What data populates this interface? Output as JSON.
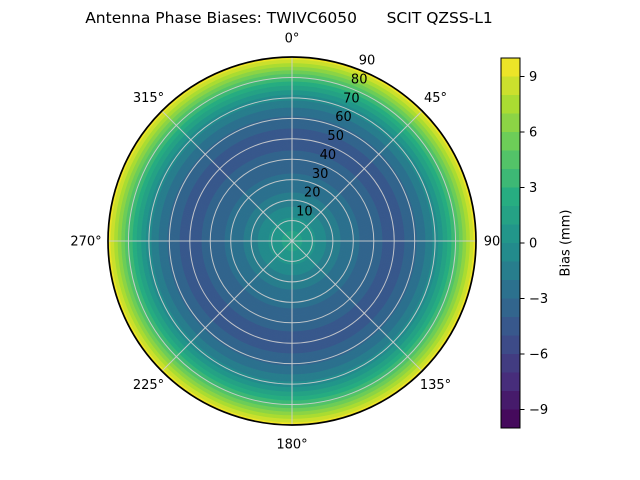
{
  "title": "Antenna Phase Biases: TWIVC6050      SCIT QZSS-L1",
  "chart_data": {
    "type": "heatmap",
    "projection": "polar",
    "title": "Antenna Phase Biases: TWIVC6050      SCIT QZSS-L1",
    "description": "Radially symmetric antenna phase bias map over zenith angle 0-90",
    "r_max": 90,
    "angle_ticks": [
      {
        "deg": 0,
        "label": "0°"
      },
      {
        "deg": 45,
        "label": "45°"
      },
      {
        "deg": 90,
        "label": "90"
      },
      {
        "deg": 135,
        "label": "135°"
      },
      {
        "deg": 180,
        "label": "180°"
      },
      {
        "deg": 225,
        "label": "225°"
      },
      {
        "deg": 270,
        "label": "270°"
      },
      {
        "deg": 315,
        "label": "315°"
      }
    ],
    "radial_ticks": [
      {
        "value": 10,
        "label": "10"
      },
      {
        "value": 20,
        "label": "20"
      },
      {
        "value": 30,
        "label": "30"
      },
      {
        "value": 40,
        "label": "40"
      },
      {
        "value": 50,
        "label": "50"
      },
      {
        "value": 60,
        "label": "60"
      },
      {
        "value": 70,
        "label": "70"
      },
      {
        "value": 80,
        "label": "80"
      },
      {
        "value": 90,
        "label": "90"
      }
    ],
    "radial_label_angle_deg": 22.5,
    "grid_on": true,
    "radial_profile": {
      "r": [
        0,
        5,
        10,
        14,
        20,
        30,
        40,
        47,
        55,
        60,
        65,
        70,
        75,
        80,
        85,
        90
      ],
      "bias_mm": [
        1.4,
        1.0,
        0.3,
        -0.5,
        -1.6,
        -2.7,
        -3.7,
        -4.2,
        -4.0,
        -3.2,
        -2.1,
        -0.6,
        1.5,
        4.0,
        6.8,
        9.8
      ]
    },
    "colorbar": {
      "label": "Bias (mm)",
      "range": [
        -10,
        10
      ],
      "levels": 20,
      "tick_values": [
        9,
        6,
        3,
        0,
        -3,
        -6,
        -9
      ],
      "tick_labels": [
        "9",
        "6",
        "3",
        "0",
        "−3",
        "−6",
        "−9"
      ]
    },
    "palette_viridis20": [
      "#450a5c",
      "#461b6b",
      "#472d7b",
      "#423c81",
      "#3d4b88",
      "#38588c",
      "#32658d",
      "#2c718e",
      "#287e8d",
      "#238b8c",
      "#22968a",
      "#25a285",
      "#27ad81",
      "#3db875",
      "#53c368",
      "#6dcd58",
      "#8cd445",
      "#aadc32",
      "#cbe02d",
      "#ece428"
    ],
    "colors": {
      "grid": "#cfcfcf",
      "outline": "#000000",
      "background": "#ffffff",
      "text": "#000000"
    }
  }
}
